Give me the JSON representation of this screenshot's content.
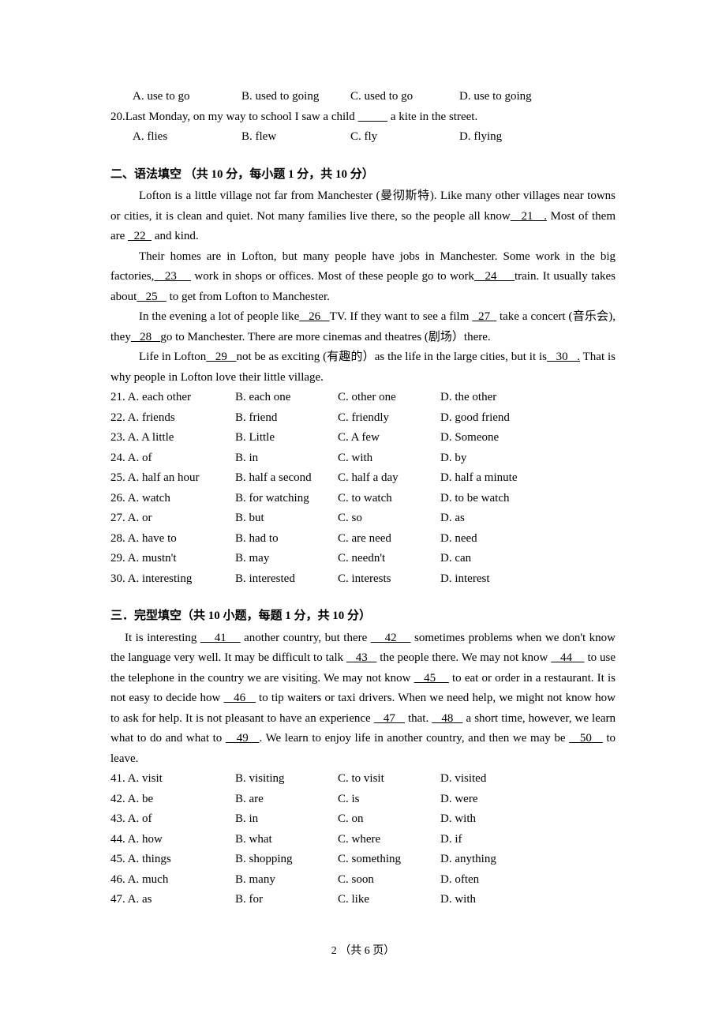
{
  "q19_options": {
    "a": "A. use to go",
    "b": "B. used to going",
    "c": "C. used to go",
    "d": "D. use to going"
  },
  "q20": {
    "pre": "20.Last Monday, on my way to school I saw a child ",
    "post": " a kite in the street.",
    "options": {
      "a": "A. flies",
      "b": "B. flew",
      "c": "C. fly",
      "d": "D. flying"
    }
  },
  "section2": {
    "title": "二、语法填空    （共 10 分，每小题 1 分，共 10 分）",
    "p1a": "Lofton is a little village not far from Manchester (曼彻斯特).   Like many other villages near towns or cities, it is clean and quiet.   Not many families live there, so the people all know",
    "b21": "   21   .",
    "p1b": "   Most of them are ",
    "b22": "  22  ",
    "p1c": " and kind.",
    "p2a": "Their homes are in Lofton, but many people have jobs in Manchester.   Some work in the big factories,",
    "b23": "   23    ",
    "p2b": " work in shops or offices.   Most of these people go to work",
    "b24": "   24     ",
    "p2c": "train.   It usually takes about",
    "b25": "   25   ",
    "p2d": " to get from Lofton to Manchester.",
    "p3a": "In the evening a lot of people like",
    "b26": "   26   ",
    "p3b": "TV.   If they want to see a film ",
    "b27": "  27  ",
    "p3c": " take a concert (音乐会), they",
    "b28": "   28   ",
    "p3d": "go to Manchester.   There are more cinemas and theatres (剧场）there.",
    "p4a": "Life in Lofton",
    "b29": "   29   ",
    "p4b": "not be as exciting (有趣的）as the life in the large cities, but it is",
    "b30": "   30   .",
    "p4c": "   That is why people in Lofton love their little village."
  },
  "s2_questions": [
    {
      "n": "21. A. each other",
      "b": "B. each one",
      "c": "C. other one",
      "d": "D. the other"
    },
    {
      "n": "22. A. friends",
      "b": "B. friend",
      "c": "C. friendly",
      "d": "D. good friend"
    },
    {
      "n": "23. A. A little",
      "b": "B. Little",
      "c": "C. A   few",
      "d": "D. Someone"
    },
    {
      "n": "24. A. of",
      "b": "B. in",
      "c": "C. with",
      "d": "D. by"
    },
    {
      "n": "25. A. half an hour",
      "b": "B. half a second",
      "c": "C. half a day",
      "d": "D. half a minute"
    },
    {
      "n": "26. A. watch",
      "b": "B. for watching",
      "c": "C. to watch",
      "d": "D. to be watch"
    },
    {
      "n": "27. A. or",
      "b": "B. but",
      "c": "C. so",
      "d": "D. as"
    },
    {
      "n": "28. A. have to",
      "b": "B. had to",
      "c": "C. are need",
      "d": "D. need"
    },
    {
      "n": "29. A. mustn't",
      "b": "B. may",
      "c": "C. needn't",
      "d": "D. can"
    },
    {
      "n": "30. A. interesting",
      "b": "B. interested",
      "c": "C. interests",
      "d": "D. interest"
    }
  ],
  "section3": {
    "title": "三．完型填空（共 10 小题，每题 1 分，共 10 分）",
    "p1a": "It is interesting ",
    "b41": "    41    ",
    "p1b": " another country, but there ",
    "b42": "    42    ",
    "p1c": " sometimes problems when we don't know the language very well. It may be difficult to talk ",
    "b43": "   43   ",
    "p1d": " the people there. We may not know ",
    "b44": "   44    ",
    "p1e": " to use the telephone in the country we are visiting. We may not know ",
    "b45": "   45    ",
    "p1f": " to eat or order in a restaurant. It is not easy to decide how ",
    "b46": "   46   ",
    "p1g": " to tip waiters or taxi drivers. When we need help, we might not know how to ask for help. It is not pleasant to have an experience ",
    "b47": "   47   ",
    "p1h": " that. ",
    "b48": "   48   ",
    "p1i": " a short time, however, we learn what to do and what to ",
    "b49": "   49   ",
    "p1j": ". We learn to enjoy life in another country, and then we may be ",
    "b50": "   50   ",
    "p1k": " to leave."
  },
  "s3_questions": [
    {
      "n": "41. A. visit",
      "b": "B. visiting",
      "c": "C. to visit",
      "d": "D. visited"
    },
    {
      "n": "42. A. be",
      "b": "B. are",
      "c": "C. is",
      "d": "D. were"
    },
    {
      "n": "43. A. of",
      "b": "B. in",
      "c": "C. on",
      "d": "D. with"
    },
    {
      "n": "44. A. how",
      "b": "B. what",
      "c": "C. where",
      "d": "D. if"
    },
    {
      "n": "45. A. things",
      "b": "B. shopping",
      "c": "C. something",
      "d": "D. anything"
    },
    {
      "n": "46. A. much",
      "b": "B. many",
      "c": "C. soon",
      "d": "D. often"
    },
    {
      "n": "47. A. as",
      "b": "B. for",
      "c": "C. like",
      "d": "D. with"
    }
  ],
  "footer": "2 （共 6 页）"
}
